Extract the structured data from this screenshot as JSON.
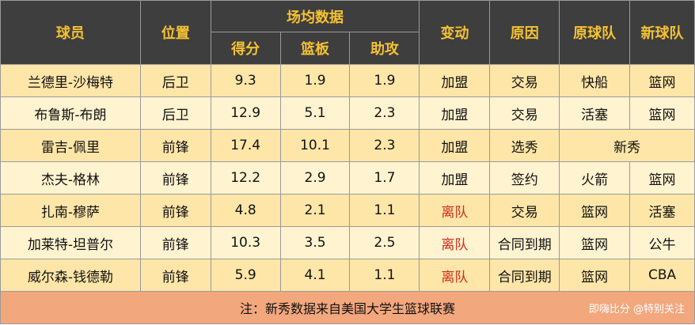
{
  "headers": {
    "player": "球员",
    "position": "位置",
    "stats_group": "场均数据",
    "points": "得分",
    "rebounds": "篮板",
    "assists": "助攻",
    "change": "变动",
    "reason": "原因",
    "from_team": "原球队",
    "to_team": "新球队"
  },
  "rows": [
    {
      "player": "兰德里-沙梅特",
      "position": "后卫",
      "points": "9.3",
      "rebounds": "1.9",
      "assists": "1.9",
      "change": "加盟",
      "reason": "交易",
      "from_team": "快船",
      "to_team": "篮网"
    },
    {
      "player": "布鲁斯-布朗",
      "position": "后卫",
      "points": "12.9",
      "rebounds": "5.1",
      "assists": "2.3",
      "change": "加盟",
      "reason": "交易",
      "from_team": "活塞",
      "to_team": "篮网"
    },
    {
      "player": "雷吉-佩里",
      "position": "前锋",
      "points": "17.4",
      "rebounds": "10.1",
      "assists": "2.3",
      "change": "加盟",
      "reason": "选秀",
      "merged": "新秀"
    },
    {
      "player": "杰夫-格林",
      "position": "前锋",
      "points": "12.2",
      "rebounds": "2.9",
      "assists": "1.7",
      "change": "加盟",
      "reason": "签约",
      "from_team": "火箭",
      "to_team": "篮网"
    },
    {
      "player": "扎南-穆萨",
      "position": "前锋",
      "points": "4.8",
      "rebounds": "2.1",
      "assists": "1.1",
      "change": "离队",
      "reason": "交易",
      "from_team": "篮网",
      "to_team": "活塞"
    },
    {
      "player": "加莱特-坦普尔",
      "position": "前锋",
      "points": "10.3",
      "rebounds": "3.5",
      "assists": "2.5",
      "change": "离队",
      "reason": "合同到期",
      "from_team": "篮网",
      "to_team": "公牛"
    },
    {
      "player": "威尔森-钱德勒",
      "position": "前锋",
      "points": "5.9",
      "rebounds": "4.1",
      "assists": "1.1",
      "change": "离队",
      "reason": "合同到期",
      "from_team": "篮网",
      "to_team": "CBA"
    }
  ],
  "note": "注：新秀数据来自美国大学生篮球联赛",
  "watermark": "即嗨比分 @特别关注",
  "colors": {
    "header_bg": "#3e3e3e",
    "header_text": "#f5c232",
    "row_odd": "#fde6a8",
    "row_even": "#fff3d0",
    "leave_text": "#d42b1e",
    "note_bg": "#f3a77d"
  }
}
